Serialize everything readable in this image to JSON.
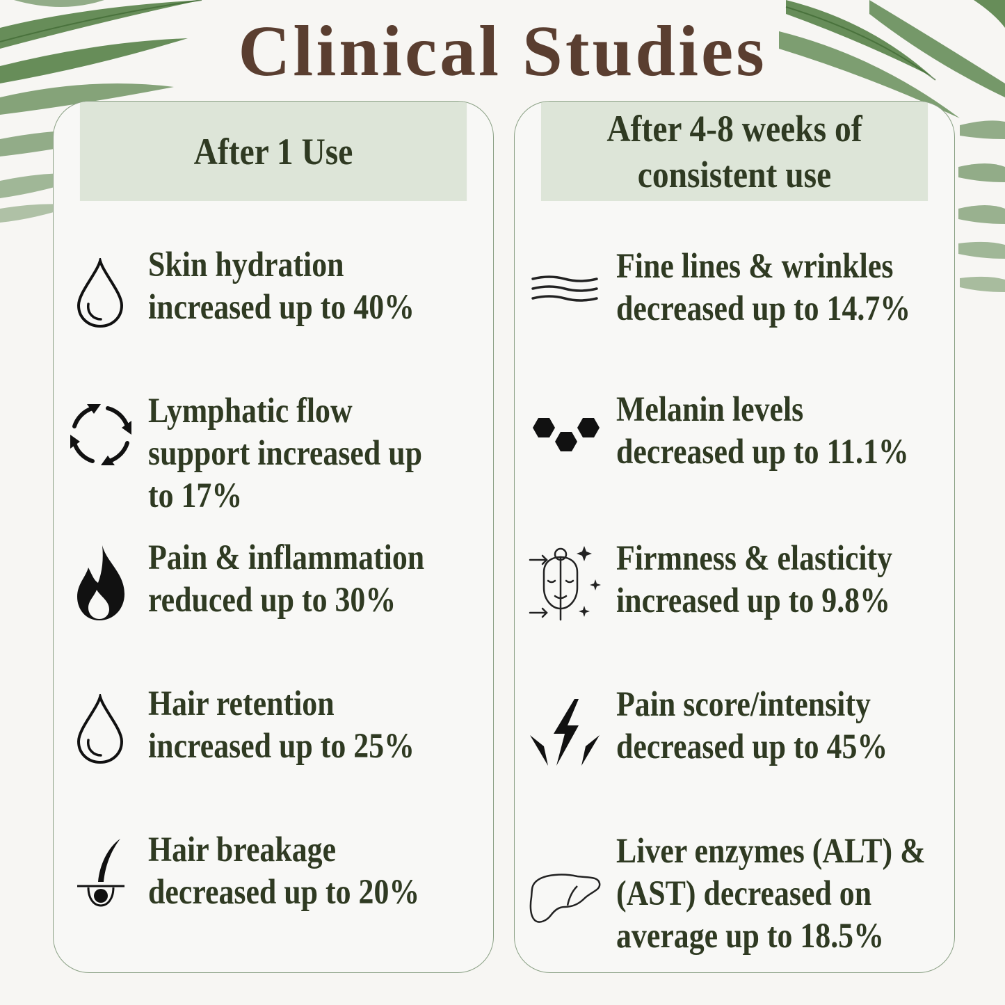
{
  "title": "Clinical Studies",
  "colors": {
    "title": "#5a3e30",
    "text": "#2f3a22",
    "header_bg": "#dde5d8",
    "border": "#8aa084",
    "leaf": "#4d7a3e"
  },
  "columns": [
    {
      "header": "After 1 Use",
      "items": [
        {
          "icon": "water-drop-icon",
          "lines": [
            "Skin hydration",
            "increased up to 40%"
          ]
        },
        {
          "icon": "circular-arrows-icon",
          "lines": [
            "Lymphatic flow",
            "support increased up",
            "to 17%"
          ]
        },
        {
          "icon": "flame-icon",
          "lines": [
            "Pain & inflammation",
            "reduced up to 30%"
          ]
        },
        {
          "icon": "water-drop-icon",
          "lines": [
            "Hair retention",
            "increased up to 25%"
          ]
        },
        {
          "icon": "hair-follicle-icon",
          "lines": [
            "Hair breakage",
            "decreased up to 20%"
          ]
        }
      ]
    },
    {
      "header_lines": [
        "After 4-8 weeks of",
        "consistent use"
      ],
      "items": [
        {
          "icon": "wave-lines-icon",
          "lines": [
            "Fine lines & wrinkles",
            "decreased up to 14.7%"
          ]
        },
        {
          "icon": "hexagon-cells-icon",
          "lines": [
            "Melanin levels",
            "decreased up to 11.1%"
          ]
        },
        {
          "icon": "face-lift-icon",
          "lines": [
            "Firmness & elasticity",
            "increased up to 9.8%"
          ]
        },
        {
          "icon": "lightning-bolts-icon",
          "lines": [
            "Pain score/intensity",
            "decreased up to 45%"
          ]
        },
        {
          "icon": "liver-icon",
          "lines": [
            "Liver enzymes (ALT) &",
            "(AST) decreased on",
            "average up to 18.5%"
          ]
        }
      ]
    }
  ]
}
